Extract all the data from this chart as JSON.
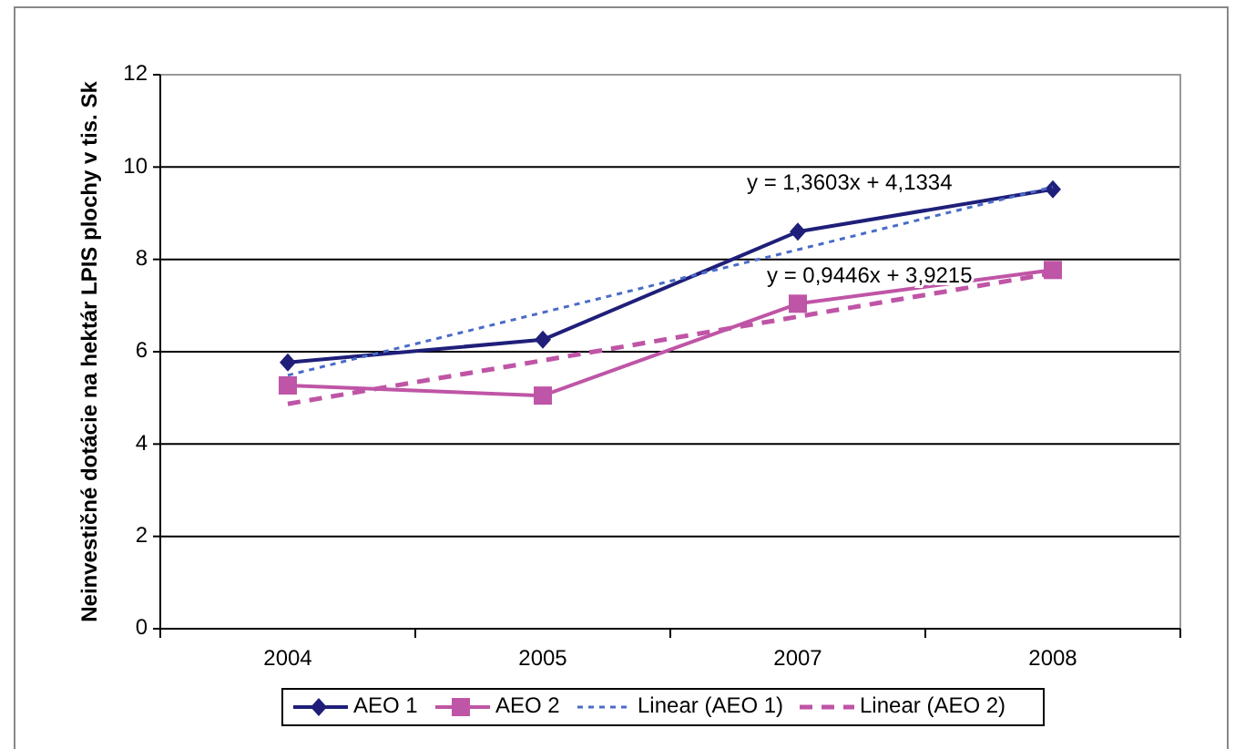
{
  "chart_data": {
    "type": "line",
    "ylabel": "Neinvestičné dotácie na hektár LPIS plochy v tis. Sk",
    "categories": [
      "2004",
      "2005",
      "2007",
      "2008"
    ],
    "ylim": [
      0,
      12
    ],
    "yticks": [
      0,
      2,
      4,
      6,
      8,
      10,
      12
    ],
    "grid": "y",
    "legend": "bottom",
    "series": [
      {
        "name": "AEO 1",
        "color": "#1f1f7a",
        "values": [
          5.77,
          6.26,
          8.6,
          9.52
        ],
        "marker": "diamond",
        "line_style": "solid"
      },
      {
        "name": "AEO 2",
        "color": "#bf55a6",
        "values": [
          5.27,
          5.05,
          7.04,
          7.77
        ],
        "marker": "square",
        "line_style": "solid"
      },
      {
        "name": "Linear (AEO 1)",
        "color": "#4a6cc8",
        "values": [
          5.49,
          6.85,
          8.21,
          9.57
        ],
        "marker": "none",
        "line_style": "dotted"
      },
      {
        "name": "Linear (AEO 2)",
        "color": "#bf55a6",
        "values": [
          4.87,
          5.81,
          6.76,
          7.7
        ],
        "marker": "none",
        "line_style": "dashed"
      }
    ],
    "annotations": [
      "y = 1,3603x + 4,1334",
      "y = 0,9446x + 3,9215"
    ]
  }
}
